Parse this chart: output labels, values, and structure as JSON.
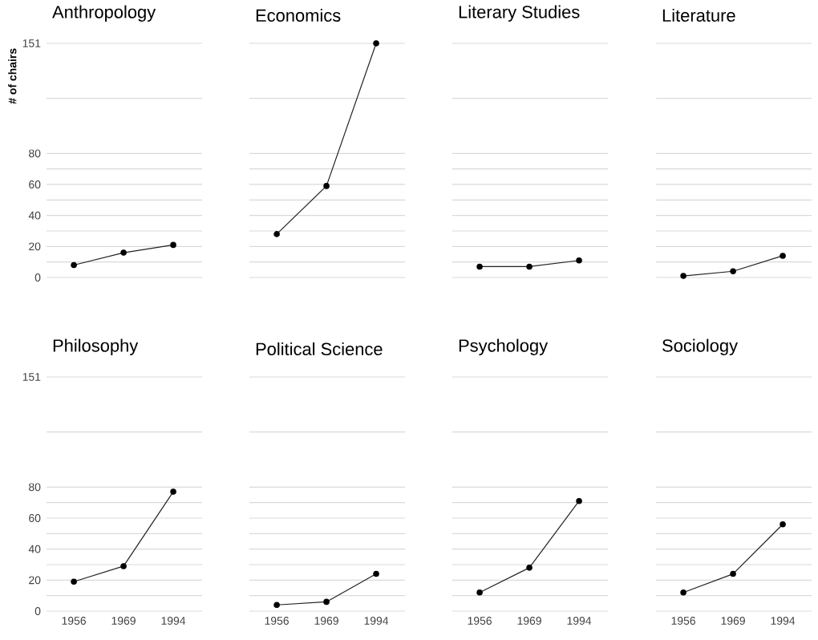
{
  "chart_data": [
    {
      "type": "line",
      "title": "Anthropology",
      "ylabel": "# of chairs",
      "categories": [
        "1956",
        "1969",
        "1994"
      ],
      "values": [
        8,
        16,
        21
      ],
      "color": "#222222",
      "ylim": [
        0,
        151
      ],
      "yticks": [
        0,
        {
          "value": 10,
          "label": null
        },
        20,
        {
          "value": 30,
          "label": null
        },
        40,
        {
          "value": 50,
          "label": null
        },
        60,
        {
          "value": 70,
          "label": null
        },
        80,
        {
          "value": 115.5,
          "label": null
        },
        151
      ],
      "grid": "y",
      "marker": "circle",
      "tick_labels": "y"
    },
    {
      "type": "line",
      "title": "Economics",
      "categories": [
        "1956",
        "1969",
        "1994"
      ],
      "values": [
        28,
        59,
        151
      ],
      "color": "#222222",
      "ylim": [
        0,
        151
      ],
      "yticks": [
        0,
        {
          "value": 10,
          "label": null
        },
        20,
        {
          "value": 30,
          "label": null
        },
        40,
        {
          "value": 50,
          "label": null
        },
        60,
        {
          "value": 70,
          "label": null
        },
        80,
        {
          "value": 115.5,
          "label": null
        },
        151
      ],
      "grid": "y",
      "marker": "circle",
      "tick_labels": false
    },
    {
      "type": "line",
      "title": "Literary Studies",
      "categories": [
        "1956",
        "1969",
        "1994"
      ],
      "values": [
        7,
        7,
        11
      ],
      "color": "#222222",
      "ylim": [
        0,
        151
      ],
      "yticks": [
        0,
        {
          "value": 10,
          "label": null
        },
        20,
        {
          "value": 30,
          "label": null
        },
        40,
        {
          "value": 50,
          "label": null
        },
        60,
        {
          "value": 70,
          "label": null
        },
        80,
        {
          "value": 115.5,
          "label": null
        },
        151
      ],
      "grid": "y",
      "marker": "circle",
      "tick_labels": false
    },
    {
      "type": "line",
      "title": "Literature",
      "categories": [
        "1956",
        "1969",
        "1994"
      ],
      "values": [
        1,
        4,
        14
      ],
      "color": "#222222",
      "ylim": [
        0,
        151
      ],
      "yticks": [
        0,
        {
          "value": 10,
          "label": null
        },
        20,
        {
          "value": 30,
          "label": null
        },
        40,
        {
          "value": 50,
          "label": null
        },
        60,
        {
          "value": 70,
          "label": null
        },
        80,
        {
          "value": 115.5,
          "label": null
        },
        151
      ],
      "grid": "y",
      "marker": "circle",
      "tick_labels": false
    },
    {
      "type": "line",
      "title": "Philosophy",
      "categories": [
        "1956",
        "1969",
        "1994"
      ],
      "values": [
        19,
        29,
        77
      ],
      "color": "#222222",
      "ylim": [
        0,
        151
      ],
      "yticks": [
        0,
        {
          "value": 10,
          "label": null
        },
        20,
        {
          "value": 30,
          "label": null
        },
        40,
        {
          "value": 50,
          "label": null
        },
        60,
        {
          "value": 70,
          "label": null
        },
        80,
        {
          "value": 115.5,
          "label": null
        },
        151
      ],
      "grid": "y",
      "marker": "circle"
    },
    {
      "type": "line",
      "title": "Political Science",
      "categories": [
        "1956",
        "1969",
        "1994"
      ],
      "values": [
        4,
        6,
        24
      ],
      "color": "#222222",
      "ylim": [
        0,
        151
      ],
      "yticks": [
        0,
        {
          "value": 10,
          "label": null
        },
        20,
        {
          "value": 30,
          "label": null
        },
        40,
        {
          "value": 50,
          "label": null
        },
        60,
        {
          "value": 70,
          "label": null
        },
        80,
        {
          "value": 115.5,
          "label": null
        },
        151
      ],
      "grid": "y",
      "marker": "circle",
      "tick_labels": "x"
    },
    {
      "type": "line",
      "title": "Psychology",
      "categories": [
        "1956",
        "1969",
        "1994"
      ],
      "values": [
        12,
        28,
        71
      ],
      "color": "#222222",
      "ylim": [
        0,
        151
      ],
      "yticks": [
        0,
        {
          "value": 10,
          "label": null
        },
        20,
        {
          "value": 30,
          "label": null
        },
        40,
        {
          "value": 50,
          "label": null
        },
        60,
        {
          "value": 70,
          "label": null
        },
        80,
        {
          "value": 115.5,
          "label": null
        },
        151
      ],
      "grid": "y",
      "marker": "circle",
      "tick_labels": "x"
    },
    {
      "type": "line",
      "title": "Sociology",
      "categories": [
        "1956",
        "1969",
        "1994"
      ],
      "values": [
        12,
        24,
        56
      ],
      "color": "#222222",
      "ylim": [
        0,
        151
      ],
      "yticks": [
        0,
        {
          "value": 10,
          "label": null
        },
        20,
        {
          "value": 30,
          "label": null
        },
        40,
        {
          "value": 50,
          "label": null
        },
        60,
        {
          "value": 70,
          "label": null
        },
        80,
        {
          "value": 115.5,
          "label": null
        },
        151
      ],
      "grid": "y",
      "marker": "circle",
      "tick_labels": "x"
    }
  ]
}
